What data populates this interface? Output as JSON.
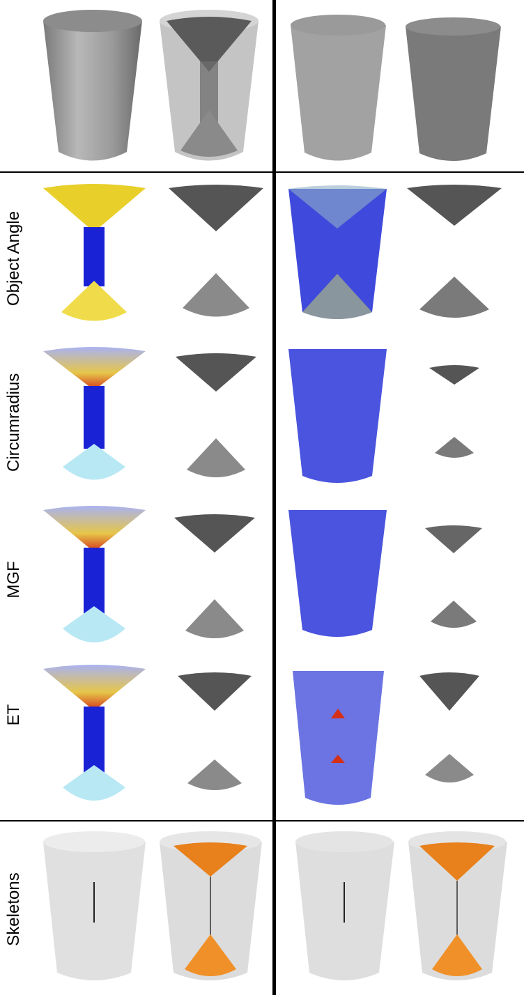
{
  "rows": [
    {
      "label": ""
    },
    {
      "label": "Object Angle"
    },
    {
      "label": "Circumradius"
    },
    {
      "label": "MGF"
    },
    {
      "label": "ET"
    },
    {
      "label": "Skeletons"
    }
  ],
  "colors": {
    "gray_shape": "#a8a8a8",
    "dark_cone": "#555555",
    "blue_fill": "#1a22d6",
    "yellow_cone": "#f0dc4a",
    "orange_skeleton": "#e8801c",
    "light_gray": "#e0e0e0"
  }
}
